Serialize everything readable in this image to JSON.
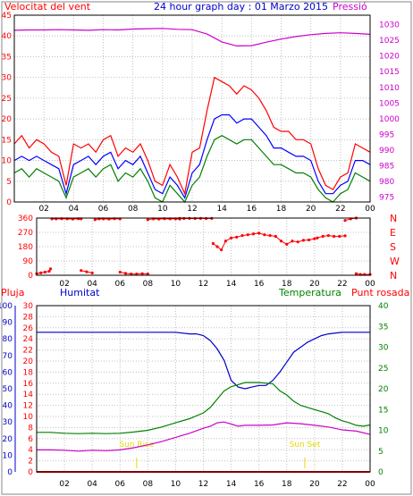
{
  "chart_data": [
    {
      "panel": "wind-pressure",
      "type": "line",
      "title": "24 hour graph day : 01 Marzo 2015",
      "left_label": "Velocitat del vent",
      "right_label": "Pressió",
      "left_ticks": [
        "0",
        "5",
        "10",
        "15",
        "20",
        "25",
        "30",
        "35",
        "40",
        "45"
      ],
      "left_ylim": [
        0,
        45
      ],
      "right_ticks": [
        "975",
        "980",
        "985",
        "990",
        "995",
        "1000",
        "1005",
        "1010",
        "1015",
        "1020",
        "1025",
        "1030"
      ],
      "right_ylim": [
        973.5,
        1033
      ],
      "x_tick_labels": [
        "02",
        "04",
        "06",
        "08",
        "10",
        "12",
        "14",
        "16",
        "18",
        "20",
        "22",
        "00"
      ],
      "x_hours": [
        2,
        4,
        6,
        8,
        10,
        12,
        14,
        16,
        18,
        20,
        22,
        24
      ],
      "xlim": [
        0,
        24
      ],
      "series": [
        {
          "key": "gust",
          "color": "#ff0000",
          "x": [
            0,
            0.5,
            1,
            1.5,
            2,
            2.5,
            3,
            3.5,
            4,
            4.5,
            5,
            5.5,
            6,
            6.5,
            7,
            7.5,
            8,
            8.5,
            9,
            9.5,
            10,
            10.5,
            11,
            11.5,
            12,
            12.5,
            13,
            13.5,
            14,
            14.5,
            15,
            15.5,
            16,
            16.5,
            17,
            17.5,
            18,
            18.5,
            19,
            19.5,
            20,
            20.5,
            21,
            21.5,
            22,
            22.5,
            23,
            23.5,
            24
          ],
          "values": [
            14,
            16,
            13,
            15,
            14,
            12,
            11,
            4,
            14,
            13,
            14,
            12,
            15,
            16,
            11,
            13,
            12,
            14,
            10,
            5,
            4,
            9,
            6,
            2,
            12,
            13,
            22,
            30,
            29,
            28,
            26,
            28,
            27,
            25,
            22,
            18,
            17,
            17,
            15,
            15,
            14,
            8,
            4,
            3,
            6,
            7,
            14,
            13,
            12
          ]
        },
        {
          "key": "average",
          "color": "#0000ff",
          "x": [
            0,
            0.5,
            1,
            1.5,
            2,
            2.5,
            3,
            3.5,
            4,
            4.5,
            5,
            5.5,
            6,
            6.5,
            7,
            7.5,
            8,
            8.5,
            9,
            9.5,
            10,
            10.5,
            11,
            11.5,
            12,
            12.5,
            13,
            13.5,
            14,
            14.5,
            15,
            15.5,
            16,
            16.5,
            17,
            17.5,
            18,
            18.5,
            19,
            19.5,
            20,
            20.5,
            21,
            21.5,
            22,
            22.5,
            23,
            23.5,
            24
          ],
          "values": [
            10,
            11,
            10,
            11,
            10,
            9,
            8,
            2,
            9,
            10,
            11,
            9,
            11,
            12,
            8,
            10,
            9,
            11,
            7,
            3,
            2,
            6,
            4,
            1,
            7,
            9,
            15,
            20,
            21,
            21,
            19,
            20,
            20,
            18,
            16,
            13,
            13,
            12,
            11,
            11,
            10,
            5,
            2,
            2,
            4,
            5,
            10,
            10,
            9
          ]
        },
        {
          "key": "minimum",
          "color": "#008000",
          "x": [
            0,
            0.5,
            1,
            1.5,
            2,
            2.5,
            3,
            3.5,
            4,
            4.5,
            5,
            5.5,
            6,
            6.5,
            7,
            7.5,
            8,
            8.5,
            9,
            9.5,
            10,
            10.5,
            11,
            11.5,
            12,
            12.5,
            13,
            13.5,
            14,
            14.5,
            15,
            15.5,
            16,
            16.5,
            17,
            17.5,
            18,
            18.5,
            19,
            19.5,
            20,
            20.5,
            21,
            21.5,
            22,
            22.5,
            23,
            23.5,
            24
          ],
          "values": [
            7,
            8,
            6,
            8,
            7,
            6,
            5,
            1,
            6,
            7,
            8,
            6,
            8,
            9,
            5,
            7,
            6,
            8,
            5,
            1,
            0,
            4,
            2,
            0,
            4,
            6,
            11,
            15,
            16,
            15,
            14,
            15,
            15,
            13,
            11,
            9,
            9,
            8,
            7,
            7,
            6,
            3,
            1,
            0,
            2,
            3,
            7,
            6,
            5
          ]
        },
        {
          "key": "pressure",
          "color": "#cc00cc",
          "axis": "right",
          "x": [
            0,
            1,
            2,
            3,
            4,
            5,
            6,
            7,
            8,
            9,
            10,
            11,
            12,
            13,
            14,
            15,
            16,
            17,
            18,
            19,
            20,
            21,
            22,
            23,
            24
          ],
          "values": [
            1028.2,
            1028.3,
            1028.3,
            1028.4,
            1028.3,
            1028.2,
            1028.4,
            1028.3,
            1028.6,
            1028.7,
            1028.8,
            1028.5,
            1028.4,
            1027,
            1024.5,
            1023.2,
            1023.3,
            1024.4,
            1025.4,
            1026.2,
            1026.8,
            1027.2,
            1027.4,
            1027.2,
            1026.9
          ]
        }
      ]
    },
    {
      "panel": "wind-direction",
      "type": "scatter",
      "color": "#ff0000",
      "left_ticks": [
        "0",
        "90",
        "180",
        "270",
        "360"
      ],
      "ylim": [
        0,
        360
      ],
      "right_ticks": [
        "N",
        "W",
        "S",
        "E",
        "N"
      ],
      "x_tick_labels": [
        "02",
        "04",
        "06",
        "08",
        "10",
        "12",
        "14",
        "16",
        "18",
        "20",
        "22",
        "00"
      ],
      "xlim": [
        0,
        24
      ],
      "segments": [
        {
          "x": [
            0.0,
            0.3,
            0.6,
            0.9,
            1.0
          ],
          "values": [
            10,
            15,
            20,
            25,
            40
          ]
        },
        {
          "x": [
            1.1,
            1.4,
            1.8,
            2.2,
            2.6,
            3.0,
            3.2
          ],
          "values": [
            355,
            355,
            356,
            355,
            354,
            356,
            355
          ]
        },
        {
          "x": [
            3.2,
            3.6,
            4.0
          ],
          "values": [
            30,
            22,
            15
          ]
        },
        {
          "x": [
            4.2,
            4.5,
            4.8,
            5.2,
            5.6,
            6.0
          ],
          "values": [
            350,
            355,
            355,
            354,
            356,
            355
          ]
        },
        {
          "x": [
            6.0,
            6.4,
            6.8,
            7.2,
            7.6,
            8.0
          ],
          "values": [
            20,
            12,
            8,
            8,
            10,
            8
          ]
        },
        {
          "x": [
            8.0,
            8.4,
            8.8,
            9.2,
            9.6,
            10.0,
            10.3
          ],
          "values": [
            350,
            355,
            354,
            356,
            355,
            355,
            354
          ]
        },
        {
          "x": [
            10.3,
            10.6,
            11.0,
            11.4,
            11.8,
            12.2,
            12.6
          ],
          "values": [
            358,
            357,
            358,
            357,
            358,
            357,
            358
          ]
        },
        {
          "x": [
            12.7,
            13.0,
            13.3,
            13.6,
            14.0,
            14.4,
            14.8,
            15.2,
            15.6,
            16.0,
            16.4,
            16.8,
            17.2,
            17.6,
            18.0,
            18.4,
            18.8,
            19.2,
            19.6,
            20.0
          ],
          "values": [
            200,
            180,
            160,
            215,
            235,
            240,
            250,
            255,
            260,
            265,
            255,
            250,
            245,
            215,
            195,
            215,
            210,
            220,
            222,
            230
          ]
        },
        {
          "x": [
            20.2,
            20.6,
            21.0,
            21.4,
            21.8,
            22.2
          ],
          "values": [
            235,
            245,
            250,
            245,
            245,
            248
          ]
        },
        {
          "x": [
            22.2,
            22.6,
            23.0
          ],
          "values": [
            345,
            355,
            360
          ]
        },
        {
          "x": [
            23.0,
            23.3,
            23.6,
            24.0
          ],
          "values": [
            10,
            5,
            5,
            5
          ]
        }
      ]
    },
    {
      "panel": "temp-humidity",
      "type": "line",
      "labels": {
        "rain": "Pluja",
        "humidity": "Humitat",
        "temperature": "Temperatura",
        "dew": "Punt rosada"
      },
      "humidity_ticks": [
        "0",
        "10",
        "20",
        "30",
        "40",
        "50",
        "60",
        "70",
        "80",
        "90",
        "100"
      ],
      "humidity_ylim": [
        0,
        100
      ],
      "rain_ticks": [
        "0",
        "2",
        "4",
        "6",
        "8",
        "10",
        "12",
        "14",
        "16",
        "18",
        "20",
        "22",
        "24",
        "26",
        "28",
        "30"
      ],
      "rain_ylim": [
        0,
        30
      ],
      "temp_ticks": [
        "0",
        "5",
        "10",
        "15",
        "20",
        "25",
        "30",
        "35",
        "40"
      ],
      "temp_ylim": [
        0,
        40
      ],
      "x_tick_labels": [
        "02",
        "04",
        "06",
        "08",
        "10",
        "12",
        "14",
        "16",
        "18",
        "20",
        "22",
        "00"
      ],
      "xlim": [
        0,
        24
      ],
      "sunrise": {
        "label": "Sun Rise",
        "hour": 7.2
      },
      "sunset": {
        "label": "Sun Set",
        "hour": 19.3
      },
      "series": [
        {
          "key": "humidity",
          "color": "#0000cc",
          "axis": "humidity",
          "x": [
            0,
            1,
            2,
            3,
            4,
            5,
            6,
            7,
            8,
            9,
            10,
            11,
            11.5,
            12,
            12.5,
            13,
            13.5,
            14,
            14.5,
            15,
            15.5,
            16,
            16.5,
            17,
            17.5,
            18,
            18.5,
            19,
            19.5,
            20,
            20.5,
            21,
            22,
            23,
            24
          ],
          "values": [
            84,
            84,
            84,
            84,
            84,
            84,
            84,
            84,
            84,
            84,
            84,
            83,
            83,
            82,
            79,
            74,
            67,
            55,
            51,
            50,
            51,
            52,
            52,
            55,
            60,
            66,
            72,
            75,
            78,
            80,
            82,
            83,
            84,
            84,
            84
          ]
        },
        {
          "key": "temperature",
          "color": "#008000",
          "axis": "temp",
          "x": [
            0,
            1,
            2,
            3,
            4,
            5,
            6,
            7,
            8,
            9,
            10,
            11,
            12,
            12.5,
            13,
            13.5,
            14,
            14.5,
            15,
            16,
            17,
            17.5,
            18,
            18.5,
            19,
            19.5,
            20,
            20.5,
            21,
            21.5,
            22,
            22.5,
            23,
            23.5,
            24
          ],
          "values": [
            9.5,
            9.5,
            9.3,
            9.2,
            9.3,
            9.2,
            9.3,
            9.6,
            10,
            10.8,
            11.8,
            12.8,
            14.2,
            15.5,
            17.5,
            19.5,
            20.5,
            21,
            21.5,
            21.5,
            21.2,
            19.5,
            18.5,
            17,
            16,
            15.5,
            15,
            14.5,
            14,
            13,
            12.3,
            11.8,
            11.2,
            11,
            11.3
          ]
        },
        {
          "key": "dew",
          "color": "#cc00cc",
          "axis": "temp",
          "x": [
            0,
            1,
            2,
            3,
            4,
            5,
            6,
            7,
            8,
            9,
            10,
            11,
            12,
            12.5,
            13,
            13.5,
            14,
            14.5,
            15,
            16,
            17,
            18,
            19,
            20,
            21,
            22,
            23,
            24
          ],
          "values": [
            5.3,
            5.3,
            5.2,
            5.0,
            5.2,
            5.1,
            5.3,
            5.8,
            6.5,
            7.3,
            8.3,
            9.3,
            10.5,
            11,
            11.8,
            12,
            11.5,
            11,
            11.2,
            11.2,
            11.3,
            11.8,
            11.6,
            11.2,
            10.8,
            10.1,
            9.8,
            9.0
          ]
        },
        {
          "key": "rain",
          "color": "#ff0000",
          "axis": "rain",
          "x": [
            0,
            24
          ],
          "values": [
            0,
            0
          ]
        }
      ]
    }
  ]
}
